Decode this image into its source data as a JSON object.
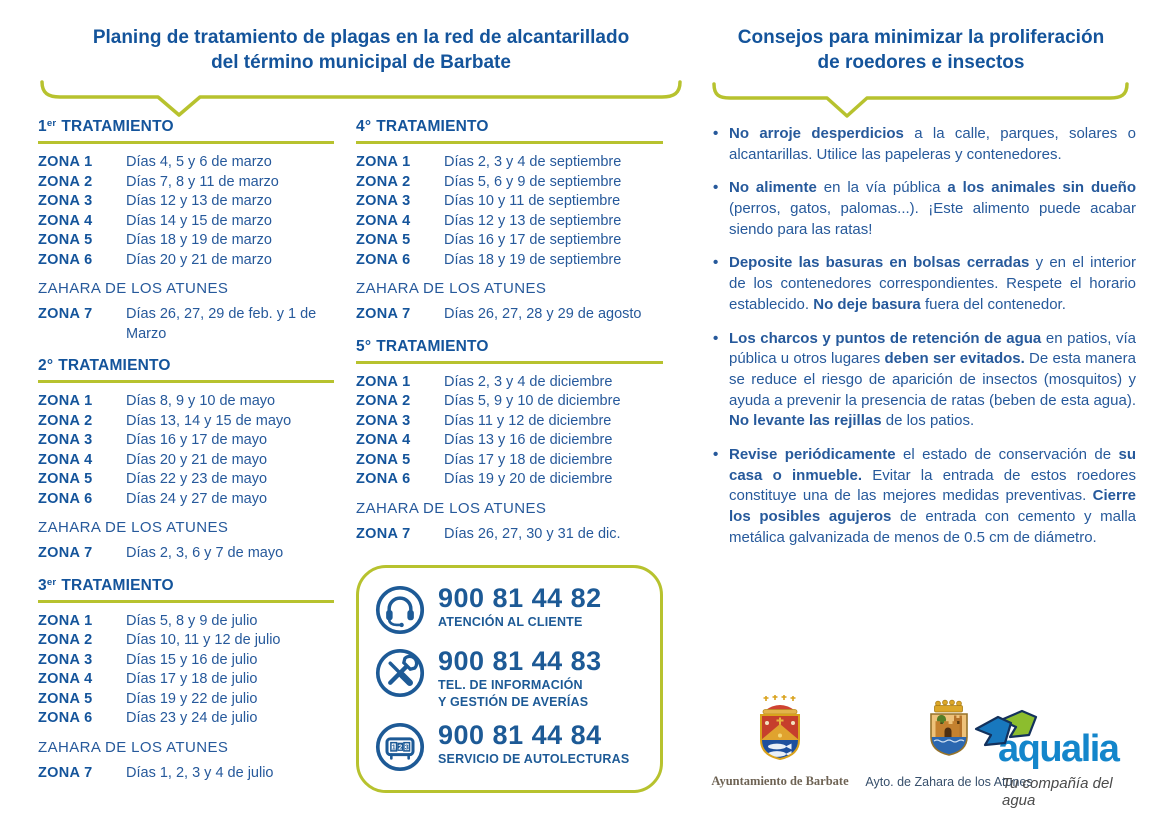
{
  "left_title": {
    "line1": "Planing de tratamiento de plagas en la red de alcantarillado",
    "line2": "del término municipal de Barbate"
  },
  "right_title": {
    "line1": "Consejos para minimizar la proliferación",
    "line2": "de roedores e insectos"
  },
  "sections": [
    {
      "num": "1",
      "ord": "er",
      "word": "TRATAMIENTO",
      "rows": [
        {
          "zone": "ZONA 1",
          "dates": "Días 4, 5 y 6 de marzo"
        },
        {
          "zone": "ZONA 2",
          "dates": "Días 7, 8 y 11 de marzo"
        },
        {
          "zone": "ZONA 3",
          "dates": "Días 12 y 13 de marzo"
        },
        {
          "zone": "ZONA 4",
          "dates": "Días 14 y 15 de marzo"
        },
        {
          "zone": "ZONA 5",
          "dates": "Días 18 y 19 de marzo"
        },
        {
          "zone": "ZONA 6",
          "dates": "Días 20 y 21 de marzo"
        }
      ],
      "subheader": "ZAHARA DE LOS ATUNES",
      "extra_row": {
        "zone": "ZONA 7",
        "dates": "Días 26, 27, 29 de feb. y 1 de Marzo"
      }
    },
    {
      "num": "2",
      "ord": "°",
      "word": "TRATAMIENTO",
      "rows": [
        {
          "zone": "ZONA 1",
          "dates": "Días 8, 9 y 10 de mayo"
        },
        {
          "zone": "ZONA 2",
          "dates": "Días 13, 14 y 15 de mayo"
        },
        {
          "zone": "ZONA 3",
          "dates": "Días 16 y 17 de mayo"
        },
        {
          "zone": "ZONA 4",
          "dates": "Días 20 y 21 de mayo"
        },
        {
          "zone": "ZONA 5",
          "dates": "Días 22 y 23 de mayo"
        },
        {
          "zone": "ZONA 6",
          "dates": "Días 24 y 27 de mayo"
        }
      ],
      "subheader": "ZAHARA DE LOS ATUNES",
      "extra_row": {
        "zone": "ZONA 7",
        "dates": "Días 2, 3, 6 y 7 de mayo"
      }
    },
    {
      "num": "3",
      "ord": "er",
      "word": "TRATAMIENTO",
      "rows": [
        {
          "zone": "ZONA 1",
          "dates": "Días 5, 8 y 9 de julio"
        },
        {
          "zone": "ZONA 2",
          "dates": "Días 10, 11 y 12 de julio"
        },
        {
          "zone": "ZONA 3",
          "dates": "Días 15 y 16 de julio"
        },
        {
          "zone": "ZONA 4",
          "dates": "Días 17 y 18 de julio"
        },
        {
          "zone": "ZONA 5",
          "dates": "Días 19 y 22 de julio"
        },
        {
          "zone": "ZONA 6",
          "dates": "Días 23 y 24 de julio"
        }
      ],
      "subheader": "ZAHARA DE LOS ATUNES",
      "extra_row": {
        "zone": "ZONA 7",
        "dates": "Días 1, 2, 3 y 4 de julio"
      }
    },
    {
      "num": "4",
      "ord": "°",
      "word": "TRATAMIENTO",
      "rows": [
        {
          "zone": "ZONA 1",
          "dates": "Días 2, 3 y 4 de septiembre"
        },
        {
          "zone": "ZONA 2",
          "dates": "Días 5, 6 y 9 de septiembre"
        },
        {
          "zone": "ZONA 3",
          "dates": "Días 10 y 11 de septiembre"
        },
        {
          "zone": "ZONA 4",
          "dates": "Días 12 y 13 de septiembre"
        },
        {
          "zone": "ZONA 5",
          "dates": "Días 16 y 17 de septiembre"
        },
        {
          "zone": "ZONA 6",
          "dates": "Días 18 y 19 de septiembre"
        }
      ],
      "subheader": "ZAHARA DE LOS ATUNES",
      "extra_row": {
        "zone": "ZONA 7",
        "dates": "Días 26, 27, 28 y 29 de agosto"
      }
    },
    {
      "num": "5",
      "ord": "°",
      "word": "TRATAMIENTO",
      "rows": [
        {
          "zone": "ZONA 1",
          "dates": "Días 2, 3 y 4 de diciembre"
        },
        {
          "zone": "ZONA 2",
          "dates": "Días 5, 9 y 10 de diciembre"
        },
        {
          "zone": "ZONA 3",
          "dates": "Días 11 y 12 de diciembre"
        },
        {
          "zone": "ZONA 4",
          "dates": "Días 13 y 16 de diciembre"
        },
        {
          "zone": "ZONA 5",
          "dates": "Días 17 y 18 de diciembre"
        },
        {
          "zone": "ZONA 6",
          "dates": "Días 19 y 20 de diciembre"
        }
      ],
      "subheader": "ZAHARA DE LOS ATUNES",
      "extra_row": {
        "zone": "ZONA 7",
        "dates": "Días 26, 27, 30 y 31 de dic."
      }
    }
  ],
  "phone_box": {
    "entries": [
      {
        "icon": "headset-icon",
        "number": "900 81 44 82",
        "label": "ATENCIÓN AL CLIENTE"
      },
      {
        "icon": "tools-icon",
        "number": "900 81 44 83",
        "label": "TEL. DE INFORMACIÓN\nY GESTIÓN DE AVERÍAS"
      },
      {
        "icon": "meter-icon",
        "number": "900 81 44 84",
        "label": "SERVICIO DE AUTOLECTURAS"
      }
    ]
  },
  "tips": [
    {
      "segments": [
        {
          "b": true,
          "t": "No arroje desperdicios"
        },
        {
          "b": false,
          "t": " a la calle, parques, solares o alcantarillas. Utilice las papeleras y contenedores."
        }
      ]
    },
    {
      "segments": [
        {
          "b": true,
          "t": "No alimente"
        },
        {
          "b": false,
          "t": " en la vía pública "
        },
        {
          "b": true,
          "t": "a los animales sin dueño"
        },
        {
          "b": false,
          "t": " (perros, gatos, palomas...). ¡Este alimento puede acabar siendo para las ratas!"
        }
      ]
    },
    {
      "segments": [
        {
          "b": true,
          "t": "Deposite las basuras en bolsas cerradas"
        },
        {
          "b": false,
          "t": " y en el interior de los contenedores correspondientes. Respete el horario establecido. "
        },
        {
          "b": true,
          "t": "No deje basura"
        },
        {
          "b": false,
          "t": " fuera del contenedor."
        }
      ]
    },
    {
      "segments": [
        {
          "b": true,
          "t": "Los charcos y puntos de retención de agua"
        },
        {
          "b": false,
          "t": " en patios, vía pública u otros lugares "
        },
        {
          "b": true,
          "t": "deben ser evitados."
        },
        {
          "b": false,
          "t": " De esta manera se reduce el riesgo de aparición de insectos (mosquitos) y ayuda a prevenir la presencia de ratas (beben de esta agua). "
        },
        {
          "b": true,
          "t": "No levante las rejillas"
        },
        {
          "b": false,
          "t": " de los patios."
        }
      ]
    },
    {
      "segments": [
        {
          "b": true,
          "t": "Revise periódicamente"
        },
        {
          "b": false,
          "t": " el estado de conservación de "
        },
        {
          "b": true,
          "t": "su casa o inmueble."
        },
        {
          "b": false,
          "t": " Evitar la entrada de estos roedores constituye una de las mejores medidas preventivas. "
        },
        {
          "b": true,
          "t": "Cierre los posibles agujeros"
        },
        {
          "b": false,
          "t": " de entrada con cemento y malla metálica galvanizada de menos de 0.5 cm de diámetro."
        }
      ]
    }
  ],
  "footer": {
    "barbate_label": "Ayuntamiento de Barbate",
    "zahara_label": "Ayto. de Zahara de los Atunes",
    "aqualia_name": "aqualia",
    "aqualia_tagline": "Tu compañía del agua"
  },
  "colors": {
    "heading_blue": "#14549b",
    "body_blue": "#26599b",
    "olive": "#b7c22e",
    "icon_blue": "#1d5a96",
    "aqualia_blue": "#1486cb"
  }
}
